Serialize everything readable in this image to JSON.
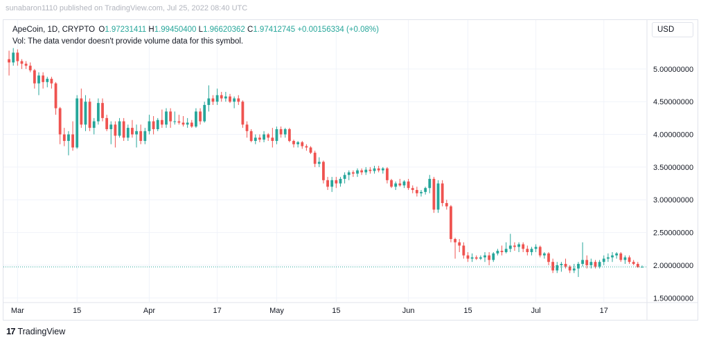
{
  "header": {
    "faint_line": "sunabaron1110 published on TradingView.com, Jul 25, 2022 08:40 UTC"
  },
  "legend": {
    "symbol": "ApeCoin, 1D, CRYPTO",
    "open_label": "O",
    "open": "1.97231411",
    "high_label": "H",
    "high": "1.99450400",
    "low_label": "L",
    "low": "1.96620362",
    "close_label": "C",
    "close": "1.97412745",
    "change": "+0.00156334 (+0.08%)",
    "volume_note": "Vol: The data vendor doesn't provide volume data for this symbol."
  },
  "currency_button": "USD",
  "brand": {
    "logo": "17",
    "name": "TradingView"
  },
  "colors": {
    "up": "#26a69a",
    "down": "#ef5350",
    "grid": "#f0f3fa",
    "axis_text": "#131722",
    "last_price_line": "#26a69a"
  },
  "chart_data": {
    "type": "candlestick",
    "symbol": "ApeCoin",
    "interval": "1D",
    "ylim": [
      1.45,
      5.4
    ],
    "y_ticks": [
      {
        "value": 5.0,
        "label": "5.00000000"
      },
      {
        "value": 4.5,
        "label": "4.50000000"
      },
      {
        "value": 4.0,
        "label": "4.00000000"
      },
      {
        "value": 3.5,
        "label": "3.50000000"
      },
      {
        "value": 3.0,
        "label": "3.00000000"
      },
      {
        "value": 2.5,
        "label": "2.50000000"
      },
      {
        "value": 2.0,
        "label": "2.00000000"
      },
      {
        "value": 1.5,
        "label": "1.50000000"
      }
    ],
    "x_ticks": [
      {
        "index": 2,
        "label": "Mar"
      },
      {
        "index": 16,
        "label": "15"
      },
      {
        "index": 33,
        "label": "Apr"
      },
      {
        "index": 49,
        "label": "17"
      },
      {
        "index": 63,
        "label": "May"
      },
      {
        "index": 77,
        "label": "15"
      },
      {
        "index": 94,
        "label": "Jun"
      },
      {
        "index": 108,
        "label": "15"
      },
      {
        "index": 124,
        "label": "Jul"
      },
      {
        "index": 140,
        "label": "17"
      }
    ],
    "last_price": 1.974,
    "grid": true,
    "candles": [
      [
        5.15,
        5.28,
        4.9,
        5.1
      ],
      [
        5.1,
        5.32,
        5.05,
        5.25
      ],
      [
        5.25,
        5.3,
        5.05,
        5.12
      ],
      [
        5.12,
        5.15,
        5.0,
        5.08
      ],
      [
        5.08,
        5.12,
        5.0,
        5.05
      ],
      [
        5.05,
        5.1,
        4.95,
        4.98
      ],
      [
        4.98,
        5.0,
        4.7,
        4.78
      ],
      [
        4.78,
        4.95,
        4.6,
        4.9
      ],
      [
        4.9,
        4.95,
        4.7,
        4.8
      ],
      [
        4.8,
        4.88,
        4.72,
        4.85
      ],
      [
        4.85,
        4.88,
        4.7,
        4.78
      ],
      [
        4.78,
        4.8,
        4.3,
        4.4
      ],
      [
        4.4,
        4.42,
        3.85,
        4.0
      ],
      [
        4.0,
        4.1,
        3.82,
        3.9
      ],
      [
        3.9,
        4.05,
        3.68,
        4.0
      ],
      [
        4.0,
        4.2,
        3.75,
        3.8
      ],
      [
        3.8,
        4.6,
        3.78,
        4.55
      ],
      [
        4.55,
        4.7,
        4.1,
        4.15
      ],
      [
        4.15,
        4.6,
        4.05,
        4.5
      ],
      [
        4.5,
        4.55,
        4.05,
        4.1
      ],
      [
        4.1,
        4.25,
        4.0,
        4.2
      ],
      [
        4.2,
        4.55,
        4.15,
        4.48
      ],
      [
        4.48,
        4.55,
        4.2,
        4.25
      ],
      [
        4.25,
        4.3,
        4.05,
        4.08
      ],
      [
        4.08,
        4.2,
        3.85,
        4.15
      ],
      [
        4.15,
        4.2,
        3.8,
        3.98
      ],
      [
        3.98,
        4.25,
        3.95,
        4.2
      ],
      [
        4.2,
        4.25,
        3.9,
        3.95
      ],
      [
        3.95,
        4.15,
        3.9,
        4.1
      ],
      [
        4.1,
        4.22,
        3.95,
        4.0
      ],
      [
        4.0,
        4.15,
        3.8,
        4.05
      ],
      [
        4.05,
        4.15,
        3.85,
        3.9
      ],
      [
        3.9,
        4.1,
        3.85,
        4.05
      ],
      [
        4.05,
        4.3,
        4.0,
        4.2
      ],
      [
        4.2,
        4.28,
        4.0,
        4.08
      ],
      [
        4.08,
        4.25,
        4.05,
        4.22
      ],
      [
        4.22,
        4.38,
        4.1,
        4.15
      ],
      [
        4.15,
        4.4,
        4.1,
        4.35
      ],
      [
        4.35,
        4.4,
        4.1,
        4.2
      ],
      [
        4.2,
        4.35,
        4.15,
        4.2
      ],
      [
        4.2,
        4.3,
        4.15,
        4.18
      ],
      [
        4.18,
        4.28,
        4.12,
        4.15
      ],
      [
        4.15,
        4.25,
        4.1,
        4.18
      ],
      [
        4.18,
        4.22,
        4.1,
        4.12
      ],
      [
        4.12,
        4.4,
        4.1,
        4.35
      ],
      [
        4.35,
        4.4,
        4.15,
        4.2
      ],
      [
        4.2,
        4.5,
        4.18,
        4.45
      ],
      [
        4.45,
        4.75,
        4.35,
        4.55
      ],
      [
        4.55,
        4.6,
        4.45,
        4.5
      ],
      [
        4.5,
        4.7,
        4.45,
        4.6
      ],
      [
        4.6,
        4.65,
        4.5,
        4.55
      ],
      [
        4.55,
        4.65,
        4.5,
        4.58
      ],
      [
        4.58,
        4.62,
        4.48,
        4.5
      ],
      [
        4.5,
        4.58,
        4.4,
        4.55
      ],
      [
        4.55,
        4.6,
        4.45,
        4.5
      ],
      [
        4.5,
        4.52,
        4.1,
        4.15
      ],
      [
        4.15,
        4.2,
        3.95,
        4.05
      ],
      [
        4.05,
        4.08,
        3.88,
        3.9
      ],
      [
        3.9,
        4.0,
        3.85,
        3.95
      ],
      [
        3.95,
        4.0,
        3.88,
        3.92
      ],
      [
        3.92,
        4.05,
        3.88,
        4.0
      ],
      [
        4.0,
        4.02,
        3.9,
        3.95
      ],
      [
        3.95,
        4.1,
        3.8,
        3.9
      ],
      [
        3.9,
        4.12,
        3.85,
        4.08
      ],
      [
        4.08,
        4.12,
        3.95,
        4.0
      ],
      [
        4.0,
        4.1,
        3.95,
        4.08
      ],
      [
        4.08,
        4.1,
        3.88,
        3.9
      ],
      [
        3.9,
        3.92,
        3.8,
        3.85
      ],
      [
        3.85,
        3.9,
        3.8,
        3.88
      ],
      [
        3.88,
        3.9,
        3.78,
        3.82
      ],
      [
        3.82,
        3.85,
        3.75,
        3.8
      ],
      [
        3.8,
        3.82,
        3.7,
        3.72
      ],
      [
        3.72,
        3.75,
        3.5,
        3.55
      ],
      [
        3.55,
        3.65,
        3.5,
        3.58
      ],
      [
        3.58,
        3.6,
        3.25,
        3.3
      ],
      [
        3.3,
        3.35,
        3.15,
        3.2
      ],
      [
        3.2,
        3.35,
        3.12,
        3.3
      ],
      [
        3.3,
        3.35,
        3.18,
        3.25
      ],
      [
        3.25,
        3.35,
        3.2,
        3.32
      ],
      [
        3.32,
        3.42,
        3.25,
        3.38
      ],
      [
        3.38,
        3.45,
        3.3,
        3.42
      ],
      [
        3.42,
        3.45,
        3.35,
        3.4
      ],
      [
        3.4,
        3.48,
        3.35,
        3.45
      ],
      [
        3.45,
        3.48,
        3.38,
        3.42
      ],
      [
        3.42,
        3.5,
        3.38,
        3.46
      ],
      [
        3.46,
        3.5,
        3.4,
        3.44
      ],
      [
        3.44,
        3.52,
        3.4,
        3.48
      ],
      [
        3.48,
        3.52,
        3.42,
        3.45
      ],
      [
        3.45,
        3.5,
        3.4,
        3.48
      ],
      [
        3.48,
        3.5,
        3.25,
        3.3
      ],
      [
        3.3,
        3.32,
        3.18,
        3.2
      ],
      [
        3.2,
        3.28,
        3.15,
        3.25
      ],
      [
        3.25,
        3.32,
        3.2,
        3.22
      ],
      [
        3.22,
        3.3,
        3.18,
        3.28
      ],
      [
        3.28,
        3.32,
        3.15,
        3.18
      ],
      [
        3.18,
        3.22,
        3.1,
        3.15
      ],
      [
        3.15,
        3.2,
        3.05,
        3.1
      ],
      [
        3.1,
        3.15,
        3.05,
        3.12
      ],
      [
        3.12,
        3.2,
        3.08,
        3.18
      ],
      [
        3.18,
        3.38,
        3.1,
        3.32
      ],
      [
        3.32,
        3.35,
        2.8,
        2.85
      ],
      [
        2.85,
        3.3,
        2.8,
        3.25
      ],
      [
        3.25,
        3.3,
        2.9,
        2.95
      ],
      [
        2.95,
        3.0,
        2.85,
        2.9
      ],
      [
        2.9,
        2.92,
        2.35,
        2.4
      ],
      [
        2.4,
        2.42,
        2.1,
        2.35
      ],
      [
        2.35,
        2.4,
        2.2,
        2.3
      ],
      [
        2.3,
        2.35,
        2.1,
        2.15
      ],
      [
        2.15,
        2.2,
        2.05,
        2.1
      ],
      [
        2.1,
        2.18,
        2.05,
        2.12
      ],
      [
        2.12,
        2.15,
        2.08,
        2.1
      ],
      [
        2.1,
        2.15,
        2.08,
        2.12
      ],
      [
        2.12,
        2.2,
        2.05,
        2.15
      ],
      [
        2.15,
        2.2,
        2.0,
        2.08
      ],
      [
        2.08,
        2.2,
        2.05,
        2.18
      ],
      [
        2.18,
        2.25,
        2.15,
        2.22
      ],
      [
        2.22,
        2.3,
        2.15,
        2.2
      ],
      [
        2.2,
        2.35,
        2.18,
        2.25
      ],
      [
        2.25,
        2.48,
        2.2,
        2.3
      ],
      [
        2.3,
        2.35,
        2.22,
        2.28
      ],
      [
        2.28,
        2.35,
        2.2,
        2.32
      ],
      [
        2.32,
        2.35,
        2.2,
        2.25
      ],
      [
        2.25,
        2.3,
        2.15,
        2.2
      ],
      [
        2.2,
        2.28,
        2.15,
        2.25
      ],
      [
        2.25,
        2.32,
        2.2,
        2.28
      ],
      [
        2.28,
        2.3,
        2.12,
        2.15
      ],
      [
        2.15,
        2.2,
        2.1,
        2.18
      ],
      [
        2.18,
        2.2,
        2.0,
        2.05
      ],
      [
        2.05,
        2.1,
        1.88,
        1.92
      ],
      [
        1.92,
        2.05,
        1.88,
        2.0
      ],
      [
        2.0,
        2.05,
        1.9,
        2.02
      ],
      [
        2.02,
        2.1,
        1.95,
        1.98
      ],
      [
        1.98,
        2.0,
        1.88,
        1.92
      ],
      [
        1.92,
        2.02,
        1.88,
        1.95
      ],
      [
        1.95,
        2.05,
        1.82,
        2.02
      ],
      [
        2.02,
        2.35,
        1.98,
        2.08
      ],
      [
        2.08,
        2.15,
        1.95,
        2.0
      ],
      [
        2.0,
        2.1,
        1.95,
        2.05
      ],
      [
        2.05,
        2.08,
        1.95,
        1.98
      ],
      [
        1.98,
        2.08,
        1.95,
        2.05
      ],
      [
        2.05,
        2.15,
        2.0,
        2.1
      ],
      [
        2.1,
        2.18,
        2.05,
        2.12
      ],
      [
        2.12,
        2.2,
        2.05,
        2.15
      ],
      [
        2.15,
        2.2,
        2.1,
        2.18
      ],
      [
        2.18,
        2.2,
        2.05,
        2.08
      ],
      [
        2.08,
        2.15,
        2.02,
        2.12
      ],
      [
        2.12,
        2.15,
        2.02,
        2.05
      ],
      [
        2.05,
        2.08,
        2.0,
        2.02
      ],
      [
        2.02,
        2.05,
        1.96,
        1.97
      ],
      [
        1.972,
        1.995,
        1.966,
        1.974
      ]
    ]
  }
}
